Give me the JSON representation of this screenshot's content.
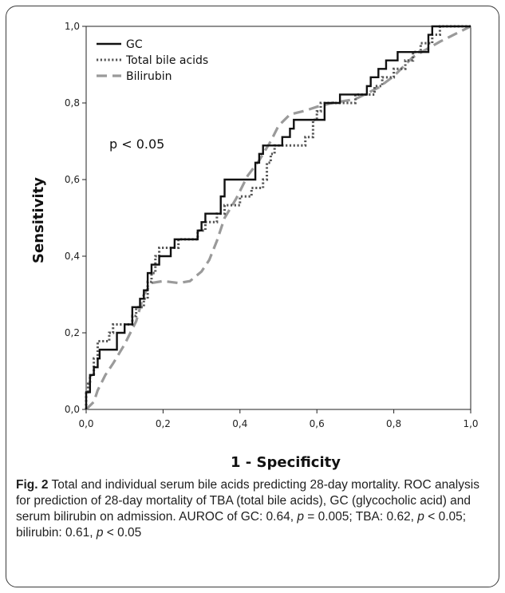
{
  "chart_data": {
    "type": "line",
    "xlabel": "1 - Specificity",
    "ylabel": "Sensitivity",
    "xlim": [
      0,
      1
    ],
    "ylim": [
      0,
      1
    ],
    "x_ticks": [
      "0,0",
      "0,2",
      "0,4",
      "0,6",
      "0,8",
      "1,0"
    ],
    "y_ticks": [
      "0,0",
      "0,2",
      "0,4",
      "0,6",
      "0,8",
      "1,0"
    ],
    "grid": false,
    "legend_position": "top-left",
    "annotation": "p < 0.05",
    "series": [
      {
        "name": "GC",
        "style": "solid",
        "color": "#111111",
        "points": [
          [
            0,
            0
          ],
          [
            0,
            0.045
          ],
          [
            0.01,
            0.045
          ],
          [
            0.01,
            0.09
          ],
          [
            0.02,
            0.09
          ],
          [
            0.02,
            0.11
          ],
          [
            0.03,
            0.11
          ],
          [
            0.03,
            0.133
          ],
          [
            0.035,
            0.133
          ],
          [
            0.035,
            0.156
          ],
          [
            0.06,
            0.156
          ],
          [
            0.08,
            0.156
          ],
          [
            0.08,
            0.2
          ],
          [
            0.1,
            0.2
          ],
          [
            0.1,
            0.222
          ],
          [
            0.12,
            0.222
          ],
          [
            0.12,
            0.267
          ],
          [
            0.14,
            0.267
          ],
          [
            0.14,
            0.289
          ],
          [
            0.15,
            0.289
          ],
          [
            0.15,
            0.311
          ],
          [
            0.16,
            0.311
          ],
          [
            0.16,
            0.356
          ],
          [
            0.17,
            0.356
          ],
          [
            0.17,
            0.378
          ],
          [
            0.19,
            0.378
          ],
          [
            0.19,
            0.4
          ],
          [
            0.22,
            0.4
          ],
          [
            0.22,
            0.422
          ],
          [
            0.23,
            0.422
          ],
          [
            0.23,
            0.444
          ],
          [
            0.29,
            0.444
          ],
          [
            0.29,
            0.467
          ],
          [
            0.3,
            0.467
          ],
          [
            0.3,
            0.489
          ],
          [
            0.31,
            0.489
          ],
          [
            0.31,
            0.511
          ],
          [
            0.35,
            0.511
          ],
          [
            0.35,
            0.556
          ],
          [
            0.36,
            0.556
          ],
          [
            0.36,
            0.6
          ],
          [
            0.44,
            0.6
          ],
          [
            0.44,
            0.644
          ],
          [
            0.45,
            0.644
          ],
          [
            0.45,
            0.667
          ],
          [
            0.46,
            0.667
          ],
          [
            0.46,
            0.689
          ],
          [
            0.5,
            0.689
          ],
          [
            0.51,
            0.689
          ],
          [
            0.51,
            0.711
          ],
          [
            0.53,
            0.711
          ],
          [
            0.53,
            0.733
          ],
          [
            0.54,
            0.733
          ],
          [
            0.54,
            0.756
          ],
          [
            0.62,
            0.756
          ],
          [
            0.62,
            0.8
          ],
          [
            0.66,
            0.8
          ],
          [
            0.66,
            0.822
          ],
          [
            0.73,
            0.822
          ],
          [
            0.73,
            0.844
          ],
          [
            0.74,
            0.844
          ],
          [
            0.74,
            0.867
          ],
          [
            0.76,
            0.867
          ],
          [
            0.76,
            0.889
          ],
          [
            0.78,
            0.889
          ],
          [
            0.78,
            0.911
          ],
          [
            0.81,
            0.911
          ],
          [
            0.81,
            0.933
          ],
          [
            0.89,
            0.933
          ],
          [
            0.89,
            0.978
          ],
          [
            0.9,
            0.978
          ],
          [
            0.9,
            1.0
          ],
          [
            1.0,
            1.0
          ]
        ]
      },
      {
        "name": "Total bile acids",
        "style": "dotted",
        "color": "#555555",
        "points": [
          [
            0,
            0
          ],
          [
            0,
            0.045
          ],
          [
            0.005,
            0.045
          ],
          [
            0.005,
            0.067
          ],
          [
            0.01,
            0.067
          ],
          [
            0.01,
            0.089
          ],
          [
            0.02,
            0.089
          ],
          [
            0.02,
            0.133
          ],
          [
            0.03,
            0.133
          ],
          [
            0.03,
            0.178
          ],
          [
            0.06,
            0.178
          ],
          [
            0.06,
            0.2
          ],
          [
            0.07,
            0.2
          ],
          [
            0.07,
            0.222
          ],
          [
            0.1,
            0.222
          ],
          [
            0.12,
            0.222
          ],
          [
            0.12,
            0.244
          ],
          [
            0.13,
            0.244
          ],
          [
            0.13,
            0.267
          ],
          [
            0.15,
            0.267
          ],
          [
            0.15,
            0.289
          ],
          [
            0.16,
            0.289
          ],
          [
            0.16,
            0.333
          ],
          [
            0.17,
            0.333
          ],
          [
            0.17,
            0.356
          ],
          [
            0.18,
            0.356
          ],
          [
            0.18,
            0.4
          ],
          [
            0.19,
            0.4
          ],
          [
            0.19,
            0.422
          ],
          [
            0.23,
            0.422
          ],
          [
            0.24,
            0.422
          ],
          [
            0.24,
            0.444
          ],
          [
            0.29,
            0.444
          ],
          [
            0.29,
            0.467
          ],
          [
            0.31,
            0.467
          ],
          [
            0.31,
            0.489
          ],
          [
            0.34,
            0.489
          ],
          [
            0.34,
            0.511
          ],
          [
            0.36,
            0.511
          ],
          [
            0.36,
            0.533
          ],
          [
            0.4,
            0.533
          ],
          [
            0.4,
            0.556
          ],
          [
            0.43,
            0.556
          ],
          [
            0.43,
            0.578
          ],
          [
            0.46,
            0.578
          ],
          [
            0.46,
            0.6
          ],
          [
            0.47,
            0.6
          ],
          [
            0.47,
            0.644
          ],
          [
            0.48,
            0.644
          ],
          [
            0.48,
            0.667
          ],
          [
            0.49,
            0.667
          ],
          [
            0.49,
            0.689
          ],
          [
            0.57,
            0.689
          ],
          [
            0.57,
            0.711
          ],
          [
            0.59,
            0.711
          ],
          [
            0.59,
            0.756
          ],
          [
            0.6,
            0.756
          ],
          [
            0.6,
            0.778
          ],
          [
            0.61,
            0.778
          ],
          [
            0.61,
            0.8
          ],
          [
            0.7,
            0.8
          ],
          [
            0.7,
            0.822
          ],
          [
            0.75,
            0.822
          ],
          [
            0.75,
            0.844
          ],
          [
            0.77,
            0.844
          ],
          [
            0.77,
            0.867
          ],
          [
            0.8,
            0.867
          ],
          [
            0.8,
            0.889
          ],
          [
            0.83,
            0.889
          ],
          [
            0.83,
            0.911
          ],
          [
            0.85,
            0.911
          ],
          [
            0.85,
            0.933
          ],
          [
            0.87,
            0.933
          ],
          [
            0.87,
            0.956
          ],
          [
            0.9,
            0.956
          ],
          [
            0.9,
            0.978
          ],
          [
            0.92,
            0.978
          ],
          [
            0.92,
            1.0
          ],
          [
            1.0,
            1.0
          ]
        ]
      },
      {
        "name": "Bilirubin",
        "style": "dashed",
        "color": "#9a9a9a",
        "points": [
          [
            0,
            0
          ],
          [
            0.02,
            0.02
          ],
          [
            0.03,
            0.05
          ],
          [
            0.05,
            0.09
          ],
          [
            0.07,
            0.12
          ],
          [
            0.1,
            0.17
          ],
          [
            0.13,
            0.23
          ],
          [
            0.15,
            0.3
          ],
          [
            0.17,
            0.33
          ],
          [
            0.2,
            0.335
          ],
          [
            0.24,
            0.33
          ],
          [
            0.27,
            0.335
          ],
          [
            0.3,
            0.36
          ],
          [
            0.32,
            0.39
          ],
          [
            0.34,
            0.44
          ],
          [
            0.36,
            0.5
          ],
          [
            0.39,
            0.55
          ],
          [
            0.42,
            0.61
          ],
          [
            0.45,
            0.65
          ],
          [
            0.48,
            0.7
          ],
          [
            0.5,
            0.74
          ],
          [
            0.53,
            0.77
          ],
          [
            0.57,
            0.78
          ],
          [
            0.6,
            0.79
          ],
          [
            0.64,
            0.8
          ],
          [
            0.7,
            0.81
          ],
          [
            0.76,
            0.84
          ],
          [
            0.8,
            0.87
          ],
          [
            0.85,
            0.92
          ],
          [
            0.92,
            0.96
          ],
          [
            0.96,
            0.98
          ],
          [
            1.0,
            1.0
          ]
        ]
      }
    ]
  },
  "caption": {
    "label": "Fig. 2",
    "text_1": " Total and individual serum bile acids predicting 28-day mortality. ROC analysis for prediction of 28-day mortality of TBA (total bile acids), GC (glycocholic acid) and serum bilirubin on admission. AUROC of GC: 0.64, ",
    "p1": "p",
    "text_2": " = 0.005; TBA: 0.62, ",
    "p2": "p",
    "text_3": " < 0.05; bilirubin: 0.61, ",
    "p3": "p",
    "text_4": " < 0.05"
  }
}
